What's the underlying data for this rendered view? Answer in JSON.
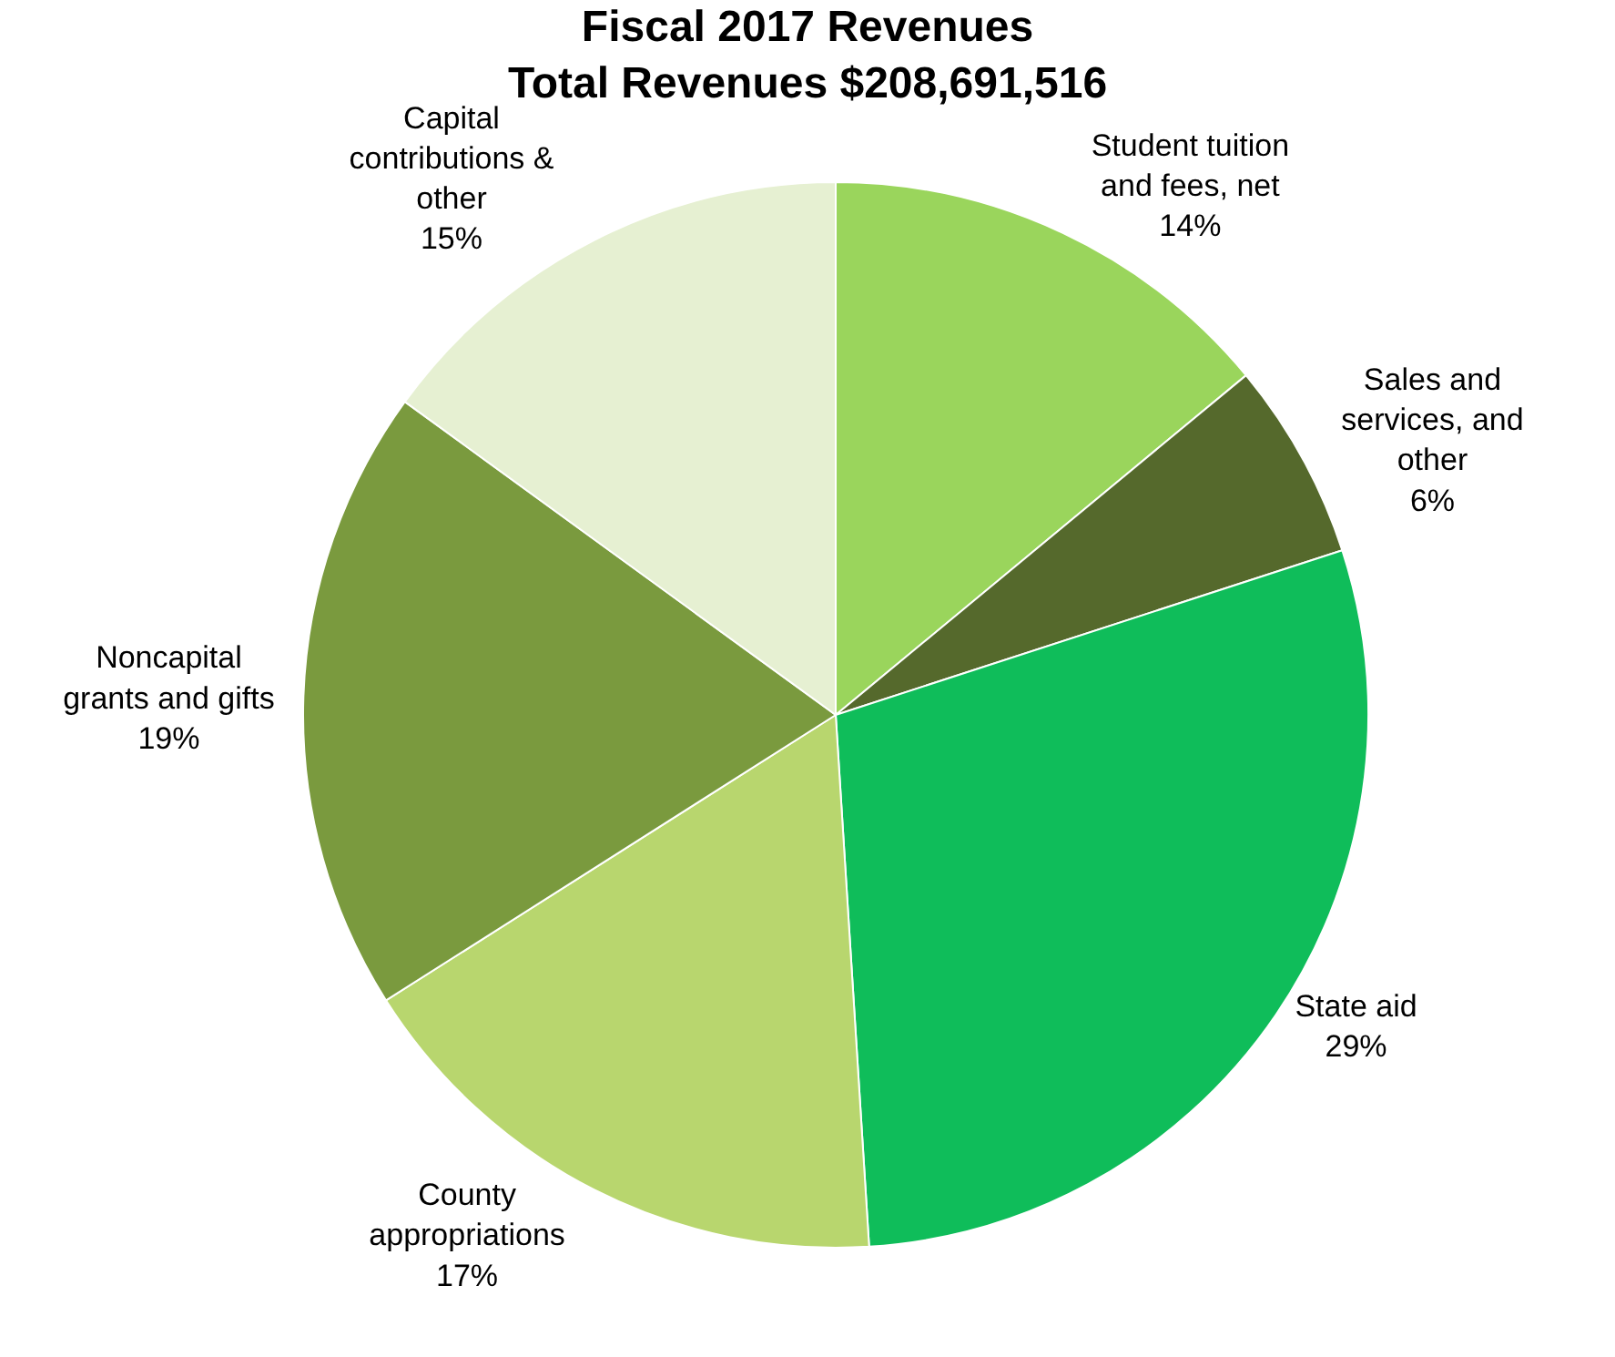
{
  "chart_data": {
    "type": "pie",
    "title": "Fiscal 2017 Revenues",
    "subtitle": "Total Revenues $208,691,516",
    "categories": [
      "Student tuition and fees, net",
      "Sales and services, and other",
      "State aid",
      "County appropriations",
      "Noncapital grants and gifts",
      "Capital contributions & other"
    ],
    "values": [
      14,
      6,
      29,
      17,
      19,
      15
    ],
    "value_labels": [
      "14%",
      "6%",
      "29%",
      "17%",
      "19%",
      "15%"
    ],
    "colors": [
      "#9ad55c",
      "#55692c",
      "#0fbd5a",
      "#b8d66e",
      "#7a9a3e",
      "#e6f0d2"
    ],
    "legend": false
  }
}
